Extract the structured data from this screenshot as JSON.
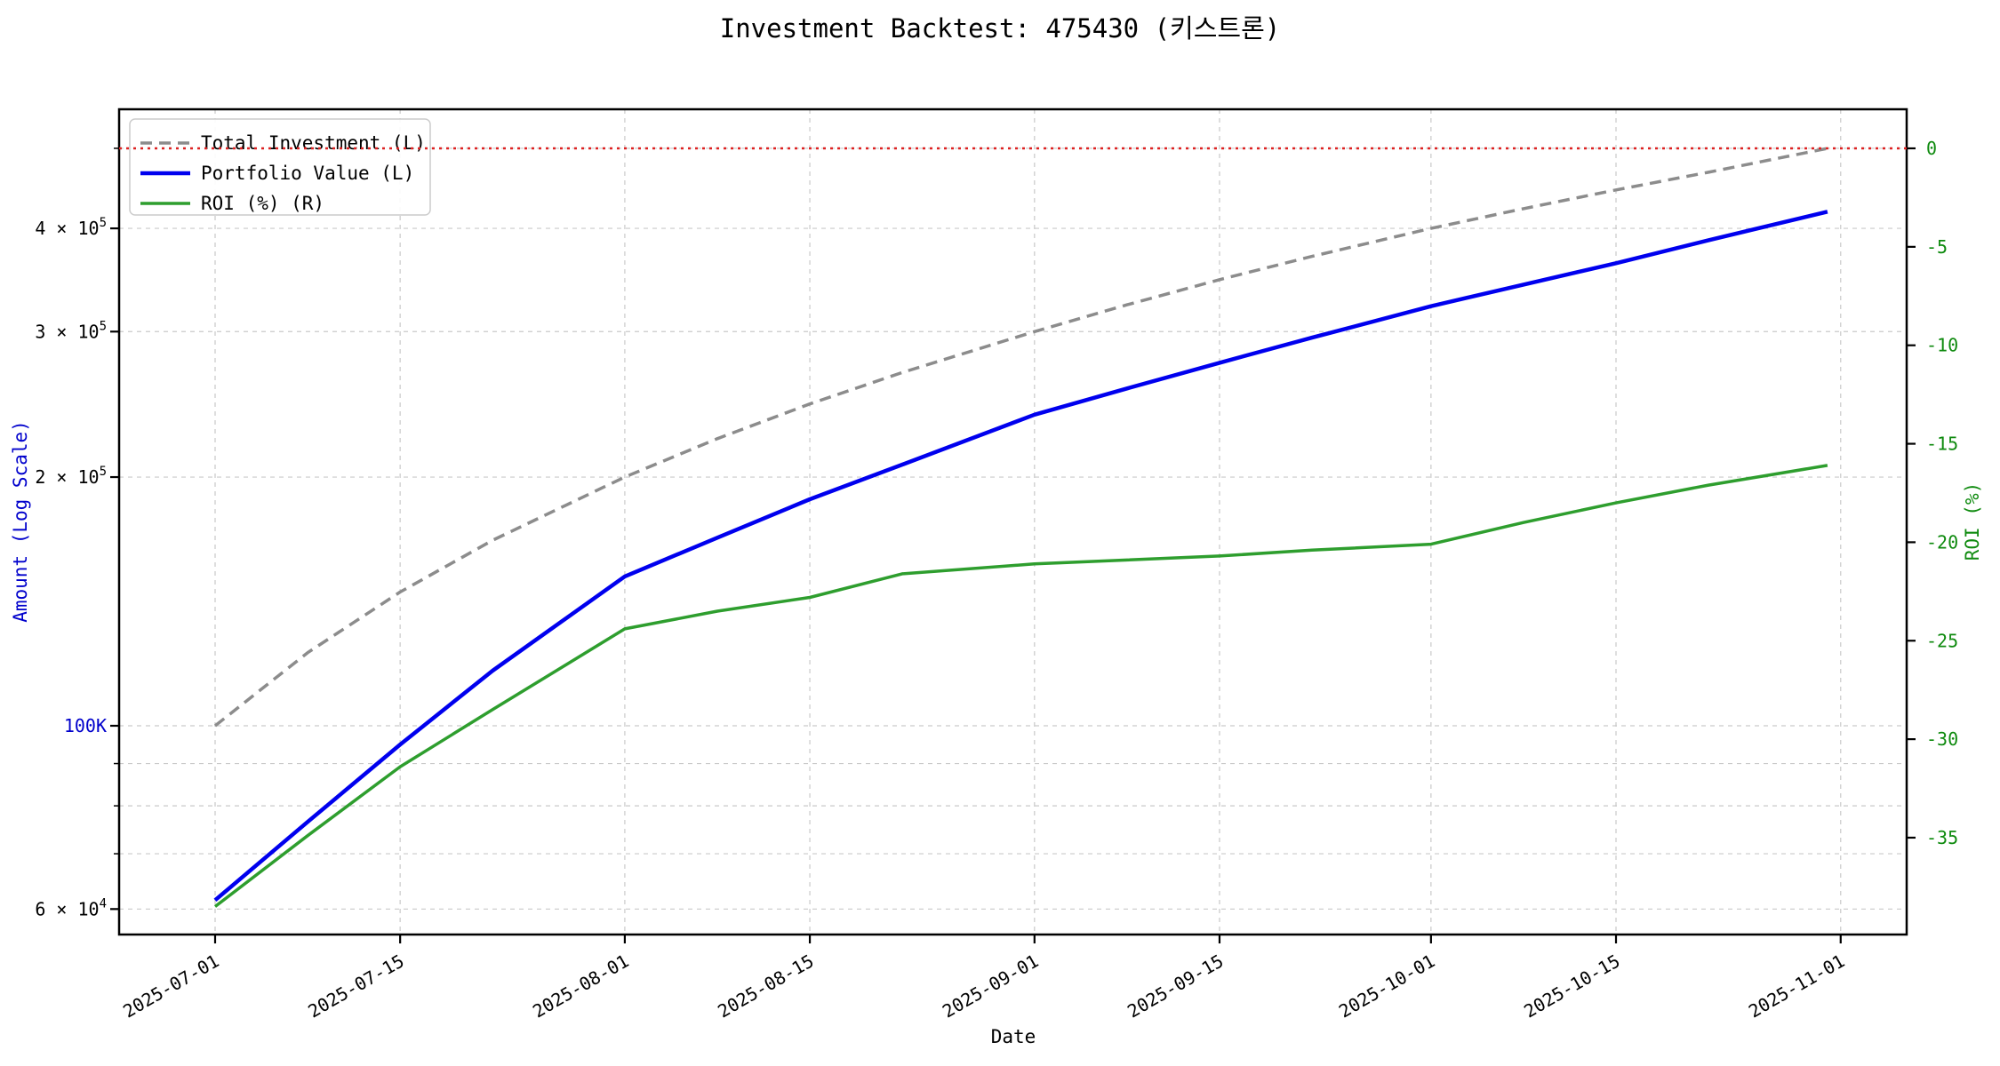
{
  "title": "Investment Backtest: 475430 (키스트론)",
  "colors": {
    "investment_line": "#8c8c8c",
    "portfolio_line": "#0000ee",
    "roi_line": "#2e9e2e",
    "roi_text": "#0e8a0e",
    "amount_text": "#0000cc",
    "zero_line": "#dd2222",
    "grid": "#c9c9c9",
    "spine": "#000000",
    "legend_border": "#cccccc",
    "legend_bg": "#ffffff"
  },
  "chart_data": {
    "type": "line",
    "title": "Investment Backtest: 475430 (키스트론)",
    "xlabel": "Date",
    "ylabel_left": "Amount (Log Scale)",
    "ylabel_right": "ROI (%)",
    "left_scale": "log",
    "right_scale": "linear",
    "grid": true,
    "legend_position": "upper left",
    "dates": [
      "2025-07-01",
      "2025-07-08",
      "2025-07-15",
      "2025-07-22",
      "2025-08-01",
      "2025-08-08",
      "2025-08-15",
      "2025-08-22",
      "2025-09-01",
      "2025-09-08",
      "2025-09-15",
      "2025-09-22",
      "2025-10-01",
      "2025-10-08",
      "2025-10-15",
      "2025-10-22",
      "2025-10-31"
    ],
    "days": [
      0,
      7,
      14,
      21,
      31,
      38,
      45,
      52,
      62,
      69,
      76,
      83,
      92,
      99,
      106,
      113,
      122
    ],
    "series": [
      {
        "name": "Total Investment (L)",
        "axis": "left",
        "style": "dashed",
        "color": "#8c8c8c",
        "values": [
          100000,
          122600,
          145200,
          167700,
          200000,
          222600,
          245200,
          267700,
          300000,
          323300,
          346700,
          370000,
          400000,
          422600,
          445200,
          467700,
          500000
        ]
      },
      {
        "name": "Portfolio Value (L)",
        "axis": "left",
        "style": "solid",
        "color": "#0000ee",
        "values": [
          61500,
          76500,
          94900,
          116600,
          151600,
          168900,
          188000,
          207100,
          238000,
          256000,
          275000,
          295000,
          322000,
          342000,
          363000,
          387000,
          419000
        ]
      },
      {
        "name": "ROI (%) (R)",
        "axis": "right",
        "style": "solid",
        "color": "#2e9e2e",
        "values": [
          -38.5,
          -34.9,
          -31.4,
          -28.5,
          -24.4,
          -23.5,
          -22.8,
          -21.6,
          -21.1,
          -20.9,
          -20.7,
          -20.4,
          -20.1,
          -19.0,
          -18.0,
          -17.1,
          -16.1
        ]
      }
    ],
    "zero_line": {
      "value": 0,
      "axis": "right",
      "color": "#dd2222",
      "style": "dotted"
    },
    "x_ticks": [
      {
        "label": "2025-07-01",
        "day": 0
      },
      {
        "label": "2025-07-15",
        "day": 14
      },
      {
        "label": "2025-08-01",
        "day": 31
      },
      {
        "label": "2025-08-15",
        "day": 45
      },
      {
        "label": "2025-09-01",
        "day": 62
      },
      {
        "label": "2025-09-15",
        "day": 76
      },
      {
        "label": "2025-10-01",
        "day": 92
      },
      {
        "label": "2025-10-15",
        "day": 106
      },
      {
        "label": "2025-11-01",
        "day": 123
      }
    ],
    "left_axis": {
      "range_approx": [
        55900,
        557000
      ],
      "ticks": [
        {
          "value": 60000,
          "base": "6 × 10",
          "sup": "4",
          "color": "#000000"
        },
        {
          "value": 70000
        },
        {
          "value": 80000
        },
        {
          "value": 90000
        },
        {
          "value": 100000,
          "base": "100K",
          "sup": "",
          "color": "#0000cc"
        },
        {
          "value": 200000,
          "base": "2 × 10",
          "sup": "5",
          "color": "#000000"
        },
        {
          "value": 300000,
          "base": "3 × 10",
          "sup": "5",
          "color": "#000000"
        },
        {
          "value": 400000,
          "base": "4 × 10",
          "sup": "5",
          "color": "#000000"
        },
        {
          "value": 500000
        }
      ]
    },
    "right_axis": {
      "range_approx": [
        -39.9,
        2.0
      ],
      "ticks": [
        0,
        -5,
        -10,
        -15,
        -20,
        -25,
        -30,
        -35
      ]
    }
  }
}
